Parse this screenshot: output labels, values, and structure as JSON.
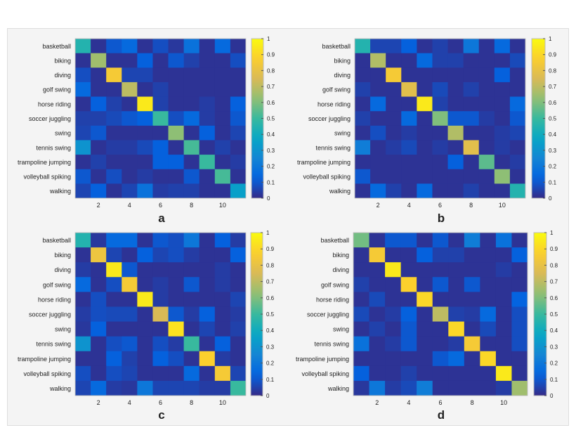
{
  "chart_data": [
    {
      "type": "heatmap",
      "panel_label": "a",
      "row_labels": [
        "basketball",
        "biking",
        "diving",
        "golf swing",
        "horse riding",
        "soccer juggling",
        "swing",
        "tennis swing",
        "trampoline jumping",
        "volleyball spiking",
        "walking"
      ],
      "x_ticks": [
        2,
        4,
        6,
        8,
        10
      ],
      "colorbar_ticks": [
        "0",
        "0.1",
        "0.2",
        "0.3",
        "0.4",
        "0.5",
        "0.6",
        "0.7",
        "0.8",
        "0.9",
        "1"
      ],
      "clim": [
        0,
        1
      ],
      "colormap": "parula",
      "values": [
        [
          0.45,
          0.02,
          0.1,
          0.15,
          0.02,
          0.08,
          0.03,
          0.18,
          0.02,
          0.15,
          0.02
        ],
        [
          0.02,
          0.65,
          0.02,
          0.02,
          0.12,
          0.02,
          0.1,
          0.05,
          0.02,
          0.02,
          0.08
        ],
        [
          0.08,
          0.02,
          0.85,
          0.06,
          0.06,
          0.02,
          0.02,
          0.02,
          0.02,
          0.02,
          0.02
        ],
        [
          0.15,
          0.02,
          0.02,
          0.7,
          0.02,
          0.05,
          0.02,
          0.02,
          0.02,
          0.02,
          0.02
        ],
        [
          0.02,
          0.12,
          0.05,
          0.02,
          0.95,
          0.05,
          0.02,
          0.02,
          0.04,
          0.02,
          0.12
        ],
        [
          0.05,
          0.05,
          0.07,
          0.1,
          0.12,
          0.5,
          0.08,
          0.15,
          0.04,
          0.02,
          0.1
        ],
        [
          0.06,
          0.1,
          0.02,
          0.02,
          0.02,
          0.02,
          0.62,
          0.02,
          0.12,
          0.02,
          0.06
        ],
        [
          0.3,
          0.02,
          0.04,
          0.04,
          0.07,
          0.12,
          0.02,
          0.52,
          0.02,
          0.05,
          0.02
        ],
        [
          0.02,
          0.05,
          0.02,
          0.02,
          0.02,
          0.12,
          0.12,
          0.02,
          0.5,
          0.02,
          0.04
        ],
        [
          0.1,
          0.02,
          0.08,
          0.02,
          0.04,
          0.02,
          0.02,
          0.1,
          0.02,
          0.52,
          0.02
        ],
        [
          0.06,
          0.12,
          0.02,
          0.06,
          0.18,
          0.04,
          0.05,
          0.05,
          0.02,
          0.02,
          0.35
        ]
      ]
    },
    {
      "type": "heatmap",
      "panel_label": "b",
      "row_labels": [
        "basketball",
        "biking",
        "diving",
        "golf swing",
        "horse riding",
        "soccer juggling",
        "swing",
        "tennis swing",
        "trampoline jumping",
        "volleyball spiking",
        "walking"
      ],
      "x_ticks": [
        2,
        4,
        6,
        8,
        10
      ],
      "colorbar_ticks": [
        "0",
        "0.1",
        "0.2",
        "0.3",
        "0.4",
        "0.5",
        "0.6",
        "0.7",
        "0.8",
        "0.9",
        "1"
      ],
      "clim": [
        0,
        1
      ],
      "colormap": "parula",
      "values": [
        [
          0.45,
          0.06,
          0.06,
          0.12,
          0.02,
          0.05,
          0.02,
          0.2,
          0.02,
          0.15,
          0.02
        ],
        [
          0.02,
          0.68,
          0.02,
          0.02,
          0.15,
          0.05,
          0.05,
          0.02,
          0.02,
          0.02,
          0.07
        ],
        [
          0.02,
          0.02,
          0.85,
          0.02,
          0.02,
          0.02,
          0.02,
          0.02,
          0.02,
          0.12,
          0.02
        ],
        [
          0.05,
          0.02,
          0.02,
          0.78,
          0.02,
          0.07,
          0.02,
          0.05,
          0.02,
          0.02,
          0.02
        ],
        [
          0.02,
          0.15,
          0.02,
          0.02,
          0.95,
          0.05,
          0.02,
          0.02,
          0.02,
          0.02,
          0.15
        ],
        [
          0.05,
          0.02,
          0.02,
          0.15,
          0.02,
          0.6,
          0.1,
          0.1,
          0.04,
          0.02,
          0.1
        ],
        [
          0.02,
          0.08,
          0.02,
          0.04,
          0.02,
          0.02,
          0.68,
          0.02,
          0.02,
          0.04,
          0.06
        ],
        [
          0.22,
          0.02,
          0.04,
          0.07,
          0.02,
          0.04,
          0.02,
          0.78,
          0.02,
          0.04,
          0.02
        ],
        [
          0.02,
          0.02,
          0.02,
          0.02,
          0.02,
          0.02,
          0.12,
          0.02,
          0.55,
          0.02,
          0.04
        ],
        [
          0.1,
          0.02,
          0.02,
          0.02,
          0.02,
          0.02,
          0.02,
          0.02,
          0.02,
          0.62,
          0.02
        ],
        [
          0.02,
          0.15,
          0.05,
          0.02,
          0.15,
          0.02,
          0.02,
          0.05,
          0.02,
          0.02,
          0.45
        ]
      ]
    },
    {
      "type": "heatmap",
      "panel_label": "c",
      "row_labels": [
        "basketball",
        "biking",
        "diving",
        "golf swing",
        "horse riding",
        "soccer juggling",
        "swing",
        "tennis swing",
        "trampoline jumping",
        "volleyball spiking",
        "walking"
      ],
      "x_ticks": [
        2,
        4,
        6,
        8,
        10
      ],
      "colorbar_ticks": [
        "0",
        "0.1",
        "0.2",
        "0.3",
        "0.4",
        "0.5",
        "0.6",
        "0.7",
        "0.8",
        "0.9",
        "1"
      ],
      "clim": [
        0,
        1
      ],
      "colormap": "parula",
      "values": [
        [
          0.45,
          0.03,
          0.15,
          0.15,
          0.02,
          0.1,
          0.08,
          0.2,
          0.02,
          0.12,
          0.04
        ],
        [
          0.02,
          0.82,
          0.06,
          0.02,
          0.12,
          0.06,
          0.08,
          0.04,
          0.02,
          0.02,
          0.12
        ],
        [
          0.04,
          0.02,
          0.95,
          0.1,
          0.02,
          0.02,
          0.02,
          0.02,
          0.02,
          0.04,
          0.02
        ],
        [
          0.15,
          0.02,
          0.08,
          0.85,
          0.02,
          0.04,
          0.02,
          0.1,
          0.02,
          0.04,
          0.02
        ],
        [
          0.02,
          0.08,
          0.02,
          0.02,
          0.95,
          0.04,
          0.02,
          0.02,
          0.02,
          0.02,
          0.06
        ],
        [
          0.04,
          0.08,
          0.07,
          0.07,
          0.02,
          0.75,
          0.1,
          0.04,
          0.12,
          0.02,
          0.04
        ],
        [
          0.03,
          0.12,
          0.02,
          0.02,
          0.02,
          0.02,
          0.93,
          0.02,
          0.06,
          0.02,
          0.05
        ],
        [
          0.3,
          0.02,
          0.08,
          0.1,
          0.02,
          0.08,
          0.04,
          0.5,
          0.02,
          0.12,
          0.02
        ],
        [
          0.02,
          0.02,
          0.12,
          0.05,
          0.02,
          0.12,
          0.08,
          0.02,
          0.88,
          0.04,
          0.02
        ],
        [
          0.08,
          0.02,
          0.08,
          0.06,
          0.02,
          0.02,
          0.02,
          0.15,
          0.02,
          0.85,
          0.06
        ],
        [
          0.06,
          0.15,
          0.04,
          0.03,
          0.2,
          0.06,
          0.06,
          0.06,
          0.04,
          0.04,
          0.5
        ]
      ]
    },
    {
      "type": "heatmap",
      "panel_label": "d",
      "row_labels": [
        "basketball",
        "biking",
        "diving",
        "golf swing",
        "horse riding",
        "soccer juggling",
        "swing",
        "tennis swing",
        "trampoline jumping",
        "volleyball spiking",
        "walking"
      ],
      "x_ticks": [
        2,
        4,
        6,
        8,
        10
      ],
      "colorbar_ticks": [
        "0",
        "0.1",
        "0.2",
        "0.3",
        "0.4",
        "0.5",
        "0.6",
        "0.7",
        "0.8",
        "0.9",
        "1"
      ],
      "clim": [
        0,
        1
      ],
      "colormap": "parula",
      "values": [
        [
          0.58,
          0.02,
          0.1,
          0.1,
          0.02,
          0.1,
          0.02,
          0.22,
          0.02,
          0.18,
          0.02
        ],
        [
          0.02,
          0.85,
          0.02,
          0.02,
          0.12,
          0.05,
          0.05,
          0.02,
          0.02,
          0.02,
          0.12
        ],
        [
          0.02,
          0.02,
          0.95,
          0.02,
          0.02,
          0.02,
          0.02,
          0.02,
          0.02,
          0.04,
          0.02
        ],
        [
          0.05,
          0.02,
          0.02,
          0.88,
          0.02,
          0.1,
          0.02,
          0.1,
          0.02,
          0.02,
          0.02
        ],
        [
          0.02,
          0.07,
          0.02,
          0.02,
          0.9,
          0.02,
          0.02,
          0.02,
          0.02,
          0.02,
          0.13
        ],
        [
          0.07,
          0.02,
          0.04,
          0.12,
          0.02,
          0.7,
          0.05,
          0.04,
          0.15,
          0.02,
          0.08
        ],
        [
          0.02,
          0.05,
          0.02,
          0.1,
          0.02,
          0.02,
          0.9,
          0.02,
          0.07,
          0.02,
          0.08
        ],
        [
          0.18,
          0.02,
          0.04,
          0.1,
          0.02,
          0.02,
          0.04,
          0.85,
          0.02,
          0.02,
          0.08
        ],
        [
          0.02,
          0.02,
          0.02,
          0.02,
          0.02,
          0.1,
          0.15,
          0.02,
          0.9,
          0.02,
          0.02
        ],
        [
          0.12,
          0.02,
          0.02,
          0.05,
          0.02,
          0.02,
          0.02,
          0.02,
          0.02,
          0.95,
          0.02
        ],
        [
          0.03,
          0.2,
          0.04,
          0.07,
          0.22,
          0.02,
          0.02,
          0.02,
          0.02,
          0.04,
          0.65
        ]
      ]
    }
  ]
}
